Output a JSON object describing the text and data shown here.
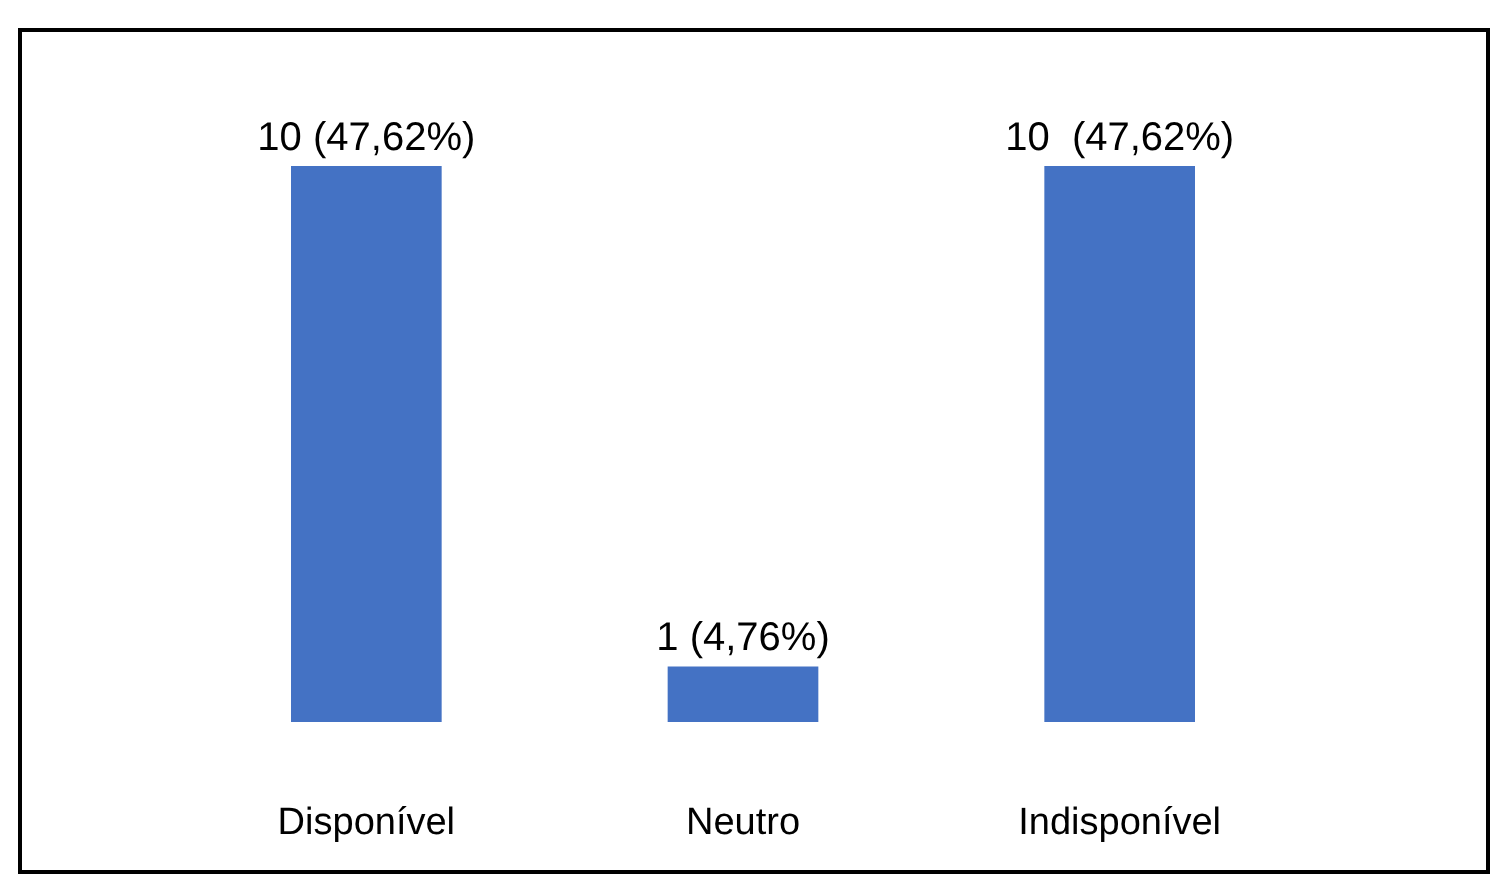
{
  "chart_data": {
    "type": "bar",
    "categories": [
      "Disponível",
      "Neutro",
      "Indisponível"
    ],
    "values": [
      10,
      1,
      10
    ],
    "value_labels": [
      "10 (47,62%)",
      "1 (4,76%)",
      "10  (47,62%)"
    ],
    "color": "#4472c4"
  }
}
